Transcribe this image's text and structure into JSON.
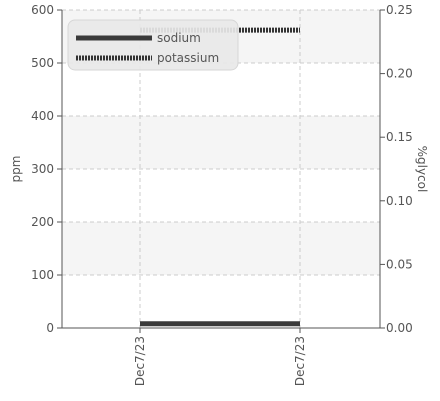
{
  "chart_data": {
    "type": "line",
    "x_categories": [
      "Dec7/23",
      "Dec7/23"
    ],
    "series": [
      {
        "name": "sodium",
        "axis": "left",
        "x": [
          0,
          1
        ],
        "y": [
          8,
          8
        ],
        "color": "#3a3a3a",
        "style": "solid"
      },
      {
        "name": "potassium",
        "axis": "left",
        "x": [
          0,
          1
        ],
        "y": [
          562,
          562
        ],
        "color": "#333333",
        "style": "dotted"
      }
    ],
    "y_left": {
      "label": "ppm",
      "ylim": [
        0,
        600
      ],
      "ticks": [
        "0",
        "100",
        "200",
        "300",
        "400",
        "500",
        "600"
      ]
    },
    "y_right": {
      "label": "%glycol",
      "ylim": [
        0,
        0.25
      ],
      "ticks": [
        "0.00",
        "0.05",
        "0.10",
        "0.15",
        "0.20",
        "0.25"
      ]
    },
    "grid": true,
    "legend_position": "top-left",
    "band_color": "#f5f5f5",
    "grid_color": "#cccccc",
    "axis_color": "#555555"
  }
}
